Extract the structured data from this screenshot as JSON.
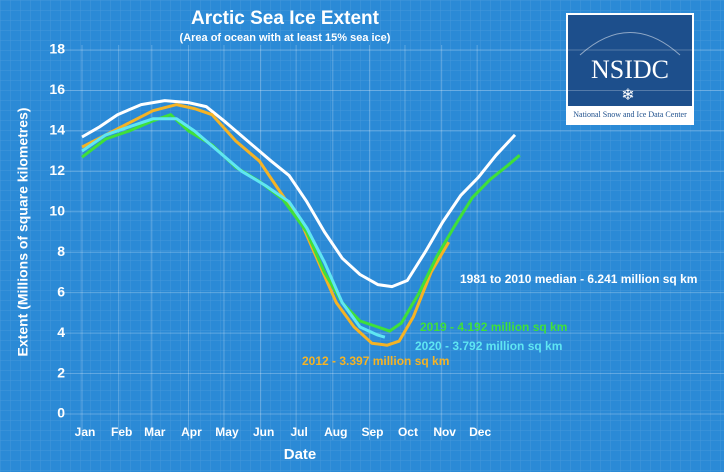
{
  "chart_data": {
    "type": "line",
    "title": "Arctic Sea Ice Extent",
    "subtitle": "(Area of ocean with at least 15% sea ice)",
    "x_label": "Date",
    "y_label": "Extent (Millions of square kilometres)",
    "logo": {
      "name": "NSIDC",
      "caption": "National Snow and Ice Data Center"
    },
    "xlim": [
      0,
      366
    ],
    "xticks": [
      {
        "value": 0,
        "label": "Jan"
      },
      {
        "value": 31,
        "label": "Feb"
      },
      {
        "value": 59,
        "label": "Mar"
      },
      {
        "value": 90,
        "label": "Apr"
      },
      {
        "value": 120,
        "label": "May"
      },
      {
        "value": 151,
        "label": "Jun"
      },
      {
        "value": 181,
        "label": "Jul"
      },
      {
        "value": 212,
        "label": "Aug"
      },
      {
        "value": 243,
        "label": "Sep"
      },
      {
        "value": 273,
        "label": "Oct"
      },
      {
        "value": 304,
        "label": "Nov"
      },
      {
        "value": 334,
        "label": "Dec"
      }
    ],
    "ylim": [
      0,
      18
    ],
    "yticks": [
      0,
      2,
      4,
      6,
      8,
      10,
      12,
      14,
      16,
      18
    ],
    "grid": true,
    "series": [
      {
        "name": "1981 to 2010 median - 6.241 million sq km",
        "color": "#ffffff",
        "x": [
          0,
          15,
          30,
          50,
          70,
          90,
          105,
          120,
          140,
          160,
          175,
          190,
          205,
          220,
          235,
          250,
          262,
          275,
          290,
          305,
          320,
          335,
          350,
          366
        ],
        "values": [
          13.7,
          14.2,
          14.8,
          15.3,
          15.5,
          15.4,
          15.2,
          14.5,
          13.5,
          12.5,
          11.8,
          10.5,
          9.0,
          7.7,
          6.9,
          6.4,
          6.3,
          6.6,
          8.0,
          9.5,
          10.8,
          11.7,
          12.8,
          13.8
        ]
      },
      {
        "name": "2012 -  3.397 million sq km",
        "color": "#f5b324",
        "x": [
          0,
          20,
          40,
          60,
          80,
          95,
          110,
          130,
          150,
          165,
          185,
          200,
          215,
          230,
          245,
          258,
          268,
          280,
          295,
          310
        ],
        "values": [
          13.2,
          13.8,
          14.4,
          15.0,
          15.3,
          15.1,
          14.8,
          13.5,
          12.5,
          11.2,
          9.5,
          7.5,
          5.5,
          4.3,
          3.5,
          3.4,
          3.6,
          4.8,
          7.0,
          8.5
        ]
      },
      {
        "name": "2019 -  4.192 million sq km",
        "color": "#3fe03a",
        "x": [
          0,
          20,
          40,
          60,
          75,
          90,
          110,
          130,
          150,
          170,
          190,
          205,
          220,
          235,
          250,
          260,
          270,
          285,
          300,
          315,
          330,
          345,
          360,
          370
        ],
        "values": [
          12.7,
          13.6,
          14.0,
          14.5,
          14.8,
          14.0,
          13.3,
          12.2,
          11.5,
          10.6,
          9.0,
          7.0,
          5.5,
          4.6,
          4.3,
          4.1,
          4.5,
          6.0,
          7.8,
          9.3,
          10.7,
          11.6,
          12.3,
          12.8
        ]
      },
      {
        "name": "2020 -  3.792 million sq km",
        "color": "#5fe6f2",
        "x": [
          0,
          20,
          40,
          60,
          80,
          95,
          115,
          135,
          155,
          175,
          190,
          205,
          220,
          235,
          250,
          256
        ],
        "values": [
          13.0,
          13.8,
          14.2,
          14.6,
          14.6,
          14.0,
          13.0,
          12.0,
          11.3,
          10.5,
          9.2,
          7.5,
          5.5,
          4.3,
          3.9,
          3.8
        ]
      }
    ]
  }
}
